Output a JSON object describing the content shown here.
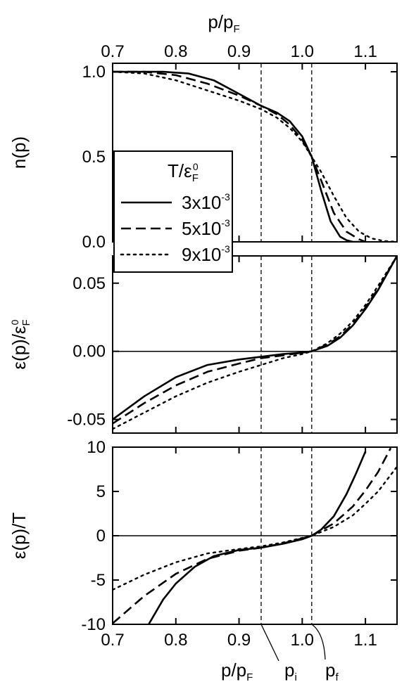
{
  "chart_data": [
    {
      "type": "line",
      "panel": "top",
      "ylabel": "n(p)",
      "xlim": [
        0.7,
        1.15
      ],
      "ylim": [
        0.0,
        1.05
      ],
      "yticks": [
        "0.0",
        "0.5",
        "1.0"
      ],
      "top_axis": {
        "xlabel_main": "p/p",
        "xlabel_sub": "F",
        "xticks": [
          "0.7",
          "0.8",
          "0.9",
          "1.0",
          "1.1"
        ]
      },
      "legend": {
        "title_main": "T/ε",
        "title_sub": "F",
        "title_sup": "0",
        "entries": [
          {
            "label_main": "3x10",
            "label_sup": "-3",
            "style": "solid"
          },
          {
            "label_main": "5x10",
            "label_sup": "-3",
            "style": "dashed"
          },
          {
            "label_main": "9x10",
            "label_sup": "-3",
            "style": "dotted"
          }
        ]
      },
      "series": [
        {
          "style": "solid",
          "x": [
            0.7,
            0.78,
            0.82,
            0.86,
            0.9,
            0.935,
            0.96,
            0.98,
            1.0,
            1.015,
            1.03,
            1.045,
            1.06,
            1.07,
            1.08,
            1.09
          ],
          "y": [
            1.0,
            1.0,
            0.99,
            0.95,
            0.87,
            0.8,
            0.76,
            0.71,
            0.62,
            0.5,
            0.3,
            0.12,
            0.03,
            0.01,
            0.0,
            0.0
          ]
        },
        {
          "style": "dashed",
          "x": [
            0.7,
            0.75,
            0.8,
            0.85,
            0.9,
            0.935,
            0.96,
            0.98,
            1.0,
            1.015,
            1.03,
            1.05,
            1.07,
            1.09,
            1.1
          ],
          "y": [
            1.0,
            1.0,
            0.98,
            0.93,
            0.86,
            0.8,
            0.75,
            0.69,
            0.6,
            0.5,
            0.36,
            0.17,
            0.06,
            0.015,
            0.0
          ]
        },
        {
          "style": "dotted",
          "x": [
            0.7,
            0.75,
            0.8,
            0.85,
            0.9,
            0.935,
            0.96,
            0.98,
            1.0,
            1.015,
            1.03,
            1.05,
            1.07,
            1.09,
            1.11,
            1.13,
            1.15
          ],
          "y": [
            1.0,
            0.99,
            0.95,
            0.89,
            0.83,
            0.78,
            0.73,
            0.67,
            0.59,
            0.5,
            0.41,
            0.27,
            0.14,
            0.06,
            0.02,
            0.005,
            0.0
          ]
        }
      ]
    },
    {
      "type": "line",
      "panel": "middle",
      "ylabel_main": "ε(p)/ε",
      "ylabel_sub": "F",
      "ylabel_sup": "0",
      "xlim": [
        0.7,
        1.15
      ],
      "ylim": [
        -0.06,
        0.07
      ],
      "yticks": [
        "-0.05",
        "0.00",
        "0.05"
      ],
      "series": [
        {
          "style": "solid",
          "x": [
            0.7,
            0.75,
            0.8,
            0.85,
            0.9,
            0.935,
            0.97,
            1.0,
            1.015,
            1.04,
            1.06,
            1.08,
            1.1,
            1.12,
            1.15
          ],
          "y": [
            -0.05,
            -0.033,
            -0.019,
            -0.01,
            -0.006,
            -0.004,
            -0.002,
            -0.001,
            0.0,
            0.004,
            0.01,
            0.019,
            0.031,
            0.045,
            0.07
          ]
        },
        {
          "style": "dashed",
          "x": [
            0.7,
            0.75,
            0.8,
            0.85,
            0.9,
            0.935,
            0.97,
            1.0,
            1.015,
            1.04,
            1.06,
            1.08,
            1.1,
            1.12,
            1.15
          ],
          "y": [
            -0.053,
            -0.038,
            -0.025,
            -0.015,
            -0.009,
            -0.005,
            -0.003,
            -0.001,
            0.0,
            0.005,
            0.011,
            0.02,
            0.032,
            0.046,
            0.07
          ]
        },
        {
          "style": "dotted",
          "x": [
            0.7,
            0.75,
            0.8,
            0.85,
            0.9,
            0.935,
            0.97,
            1.0,
            1.015,
            1.04,
            1.06,
            1.08,
            1.1,
            1.12,
            1.15
          ],
          "y": [
            -0.057,
            -0.045,
            -0.033,
            -0.023,
            -0.015,
            -0.01,
            -0.005,
            -0.002,
            0.0,
            0.006,
            0.013,
            0.022,
            0.034,
            0.048,
            0.07
          ]
        }
      ]
    },
    {
      "type": "line",
      "panel": "bottom",
      "ylabel": "ε(p)/T",
      "xlim": [
        0.7,
        1.15
      ],
      "ylim": [
        -10,
        10
      ],
      "yticks": [
        "-10",
        "-5",
        "0",
        "5",
        "10"
      ],
      "bottom_axis": {
        "xticks": [
          "0.7",
          "0.8",
          "0.9",
          "1.0",
          "1.1"
        ],
        "xlabel_main": "p/p",
        "xlabel_sub": "F",
        "marker_i_main": "p",
        "marker_i_sub": "i",
        "marker_f_main": "p",
        "marker_f_sub": "f"
      },
      "vlines": [
        0.935,
        1.015
      ],
      "series": [
        {
          "style": "solid",
          "x": [
            0.757,
            0.78,
            0.8,
            0.83,
            0.86,
            0.9,
            0.935,
            0.97,
            1.0,
            1.015,
            1.03,
            1.05,
            1.07,
            1.085,
            1.1
          ],
          "y": [
            -10,
            -7.2,
            -5.4,
            -3.5,
            -2.3,
            -1.6,
            -1.35,
            -0.9,
            -0.4,
            0.0,
            0.7,
            2.2,
            4.7,
            7.0,
            9.5
          ]
        },
        {
          "style": "dashed",
          "x": [
            0.7,
            0.75,
            0.8,
            0.85,
            0.9,
            0.935,
            0.97,
            1.0,
            1.015,
            1.05,
            1.08,
            1.1,
            1.12,
            1.14
          ],
          "y": [
            -9.9,
            -6.8,
            -4.3,
            -2.6,
            -1.7,
            -1.35,
            -0.85,
            -0.3,
            0.0,
            1.4,
            3.3,
            5.1,
            7.2,
            9.9
          ]
        },
        {
          "style": "dotted",
          "x": [
            0.7,
            0.75,
            0.8,
            0.85,
            0.9,
            0.935,
            0.97,
            1.0,
            1.015,
            1.05,
            1.08,
            1.1,
            1.12,
            1.15
          ],
          "y": [
            -6.1,
            -4.4,
            -3.0,
            -2.0,
            -1.5,
            -1.2,
            -0.75,
            -0.25,
            0.0,
            1.0,
            2.3,
            3.6,
            5.0,
            7.8
          ]
        }
      ]
    }
  ]
}
